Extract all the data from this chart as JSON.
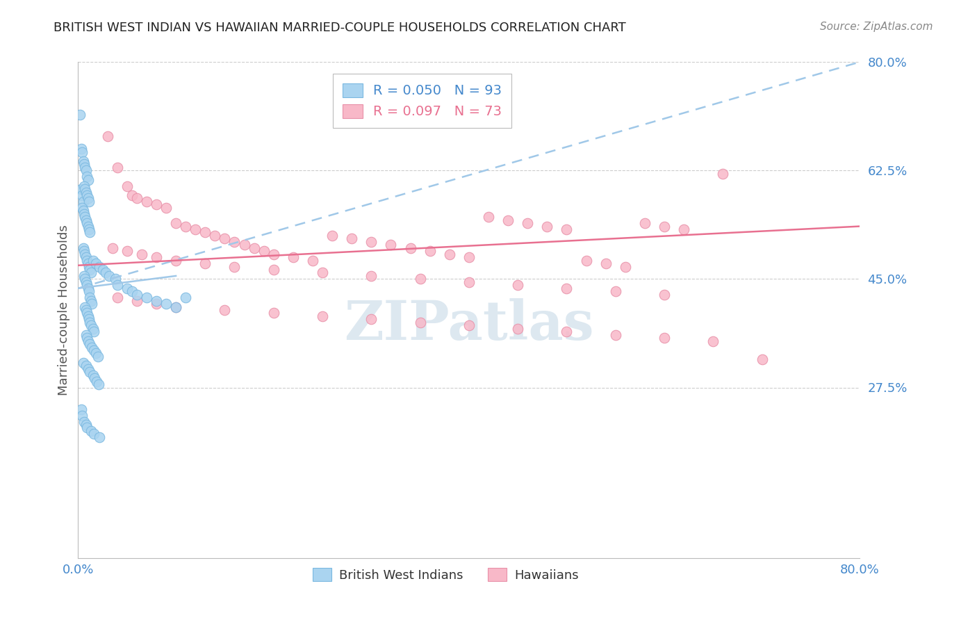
{
  "title": "BRITISH WEST INDIAN VS HAWAIIAN MARRIED-COUPLE HOUSEHOLDS CORRELATION CHART",
  "source": "Source: ZipAtlas.com",
  "ylabel": "Married-couple Households",
  "right_yticklabels": [
    "",
    "27.5%",
    "45.0%",
    "62.5%",
    "80.0%"
  ],
  "right_ytick_vals": [
    0.0,
    0.275,
    0.45,
    0.625,
    0.8
  ],
  "xmin": 0.0,
  "xmax": 0.8,
  "ymin": 0.0,
  "ymax": 0.8,
  "series1_name": "British West Indians",
  "series1_color": "#aad4f0",
  "series1_edge": "#7ab8e0",
  "series2_name": "Hawaiians",
  "series2_color": "#f8b8c8",
  "series2_edge": "#e890a8",
  "trend1_color": "#a0c8e8",
  "trend2_color": "#e87090",
  "watermark": "ZIPatlas",
  "watermark_color": "#dde8f0",
  "background_color": "#ffffff",
  "grid_color": "#cccccc",
  "title_color": "#222222",
  "tick_label_color": "#4488cc",
  "legend_r1_color": "#4488cc",
  "legend_r2_color": "#e87090",
  "bwi_x": [
    0.002,
    0.003,
    0.004,
    0.005,
    0.006,
    0.007,
    0.008,
    0.009,
    0.01,
    0.003,
    0.004,
    0.005,
    0.006,
    0.007,
    0.008,
    0.009,
    0.01,
    0.011,
    0.004,
    0.005,
    0.006,
    0.007,
    0.008,
    0.009,
    0.01,
    0.011,
    0.012,
    0.005,
    0.006,
    0.007,
    0.008,
    0.009,
    0.01,
    0.011,
    0.012,
    0.013,
    0.006,
    0.007,
    0.008,
    0.009,
    0.01,
    0.011,
    0.012,
    0.013,
    0.014,
    0.007,
    0.008,
    0.009,
    0.01,
    0.011,
    0.012,
    0.013,
    0.015,
    0.016,
    0.008,
    0.009,
    0.01,
    0.012,
    0.014,
    0.016,
    0.018,
    0.02,
    0.015,
    0.018,
    0.022,
    0.025,
    0.028,
    0.032,
    0.038,
    0.04,
    0.05,
    0.055,
    0.06,
    0.07,
    0.08,
    0.09,
    0.1,
    0.005,
    0.008,
    0.01,
    0.012,
    0.015,
    0.017,
    0.019,
    0.021,
    0.003,
    0.004,
    0.006,
    0.008,
    0.009,
    0.013,
    0.016,
    0.022,
    0.11
  ],
  "bwi_y": [
    0.715,
    0.66,
    0.655,
    0.64,
    0.635,
    0.63,
    0.625,
    0.615,
    0.61,
    0.595,
    0.585,
    0.575,
    0.6,
    0.595,
    0.59,
    0.585,
    0.58,
    0.575,
    0.565,
    0.56,
    0.555,
    0.55,
    0.545,
    0.54,
    0.535,
    0.53,
    0.525,
    0.5,
    0.495,
    0.49,
    0.485,
    0.48,
    0.475,
    0.47,
    0.465,
    0.46,
    0.455,
    0.45,
    0.445,
    0.44,
    0.435,
    0.43,
    0.42,
    0.415,
    0.41,
    0.405,
    0.4,
    0.395,
    0.39,
    0.385,
    0.38,
    0.375,
    0.37,
    0.365,
    0.36,
    0.355,
    0.35,
    0.345,
    0.34,
    0.335,
    0.33,
    0.325,
    0.48,
    0.475,
    0.47,
    0.465,
    0.46,
    0.455,
    0.45,
    0.44,
    0.435,
    0.43,
    0.425,
    0.42,
    0.415,
    0.41,
    0.405,
    0.315,
    0.31,
    0.305,
    0.3,
    0.295,
    0.29,
    0.285,
    0.28,
    0.24,
    0.23,
    0.22,
    0.215,
    0.21,
    0.205,
    0.2,
    0.195,
    0.42
  ],
  "hawaii_x": [
    0.03,
    0.04,
    0.05,
    0.055,
    0.06,
    0.07,
    0.08,
    0.09,
    0.1,
    0.11,
    0.12,
    0.13,
    0.14,
    0.15,
    0.16,
    0.17,
    0.18,
    0.19,
    0.2,
    0.22,
    0.24,
    0.26,
    0.28,
    0.3,
    0.32,
    0.34,
    0.36,
    0.38,
    0.4,
    0.42,
    0.44,
    0.46,
    0.48,
    0.5,
    0.52,
    0.54,
    0.56,
    0.58,
    0.6,
    0.62,
    0.035,
    0.05,
    0.065,
    0.08,
    0.1,
    0.13,
    0.16,
    0.2,
    0.25,
    0.3,
    0.35,
    0.4,
    0.45,
    0.5,
    0.55,
    0.6,
    0.04,
    0.06,
    0.08,
    0.1,
    0.15,
    0.2,
    0.25,
    0.3,
    0.35,
    0.4,
    0.45,
    0.5,
    0.55,
    0.6,
    0.65,
    0.7,
    0.66
  ],
  "hawaii_y": [
    0.68,
    0.63,
    0.6,
    0.585,
    0.58,
    0.575,
    0.57,
    0.565,
    0.54,
    0.535,
    0.53,
    0.525,
    0.52,
    0.515,
    0.51,
    0.505,
    0.5,
    0.495,
    0.49,
    0.485,
    0.48,
    0.52,
    0.515,
    0.51,
    0.505,
    0.5,
    0.495,
    0.49,
    0.485,
    0.55,
    0.545,
    0.54,
    0.535,
    0.53,
    0.48,
    0.475,
    0.47,
    0.54,
    0.535,
    0.53,
    0.5,
    0.495,
    0.49,
    0.485,
    0.48,
    0.475,
    0.47,
    0.465,
    0.46,
    0.455,
    0.45,
    0.445,
    0.44,
    0.435,
    0.43,
    0.425,
    0.42,
    0.415,
    0.41,
    0.405,
    0.4,
    0.395,
    0.39,
    0.385,
    0.38,
    0.375,
    0.37,
    0.365,
    0.36,
    0.355,
    0.35,
    0.32,
    0.62
  ]
}
